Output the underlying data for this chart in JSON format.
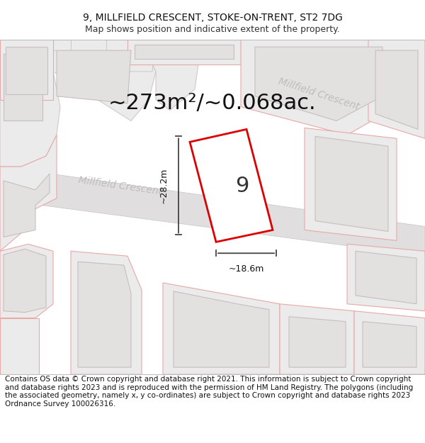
{
  "title_line1": "9, MILLFIELD CRESCENT, STOKE-ON-TRENT, ST2 7DG",
  "title_line2": "Map shows position and indicative extent of the property.",
  "area_text": "~273m²/~0.068ac.",
  "number_label": "9",
  "dim_vertical": "~28.2m",
  "dim_horizontal": "~18.6m",
  "road_label_1": "Millfield Crescent",
  "road_label_2": "Millfield Crescent",
  "footer_text": "Contains OS data © Crown copyright and database right 2021. This information is subject to Crown copyright and database rights 2023 and is reproduced with the permission of HM Land Registry. The polygons (including the associated geometry, namely x, y co-ordinates) are subject to Crown copyright and database rights 2023 Ordnance Survey 100026316.",
  "bg_color": "#ffffff",
  "map_bg": "#f7f6f6",
  "road_fill": "#e0dede",
  "road_edge": "#c8c4c4",
  "plot_fill": "#ebebeb",
  "plot_edge_main": "#d4c8c8",
  "inner_fill": "#e3e0e0",
  "inner_edge": "#c8bebe",
  "prop_fill": "#ffffff",
  "prop_edge_red": "#dd0000",
  "neighbor_edge_pink": "#e8a8a8",
  "neighbor_fill_pink": "#f5f0f0",
  "title_fontsize": 10,
  "subtitle_fontsize": 9,
  "area_fontsize": 22,
  "footer_fontsize": 7.5,
  "road_label_color": "#c0bcbc",
  "dim_line_color": "#444444"
}
